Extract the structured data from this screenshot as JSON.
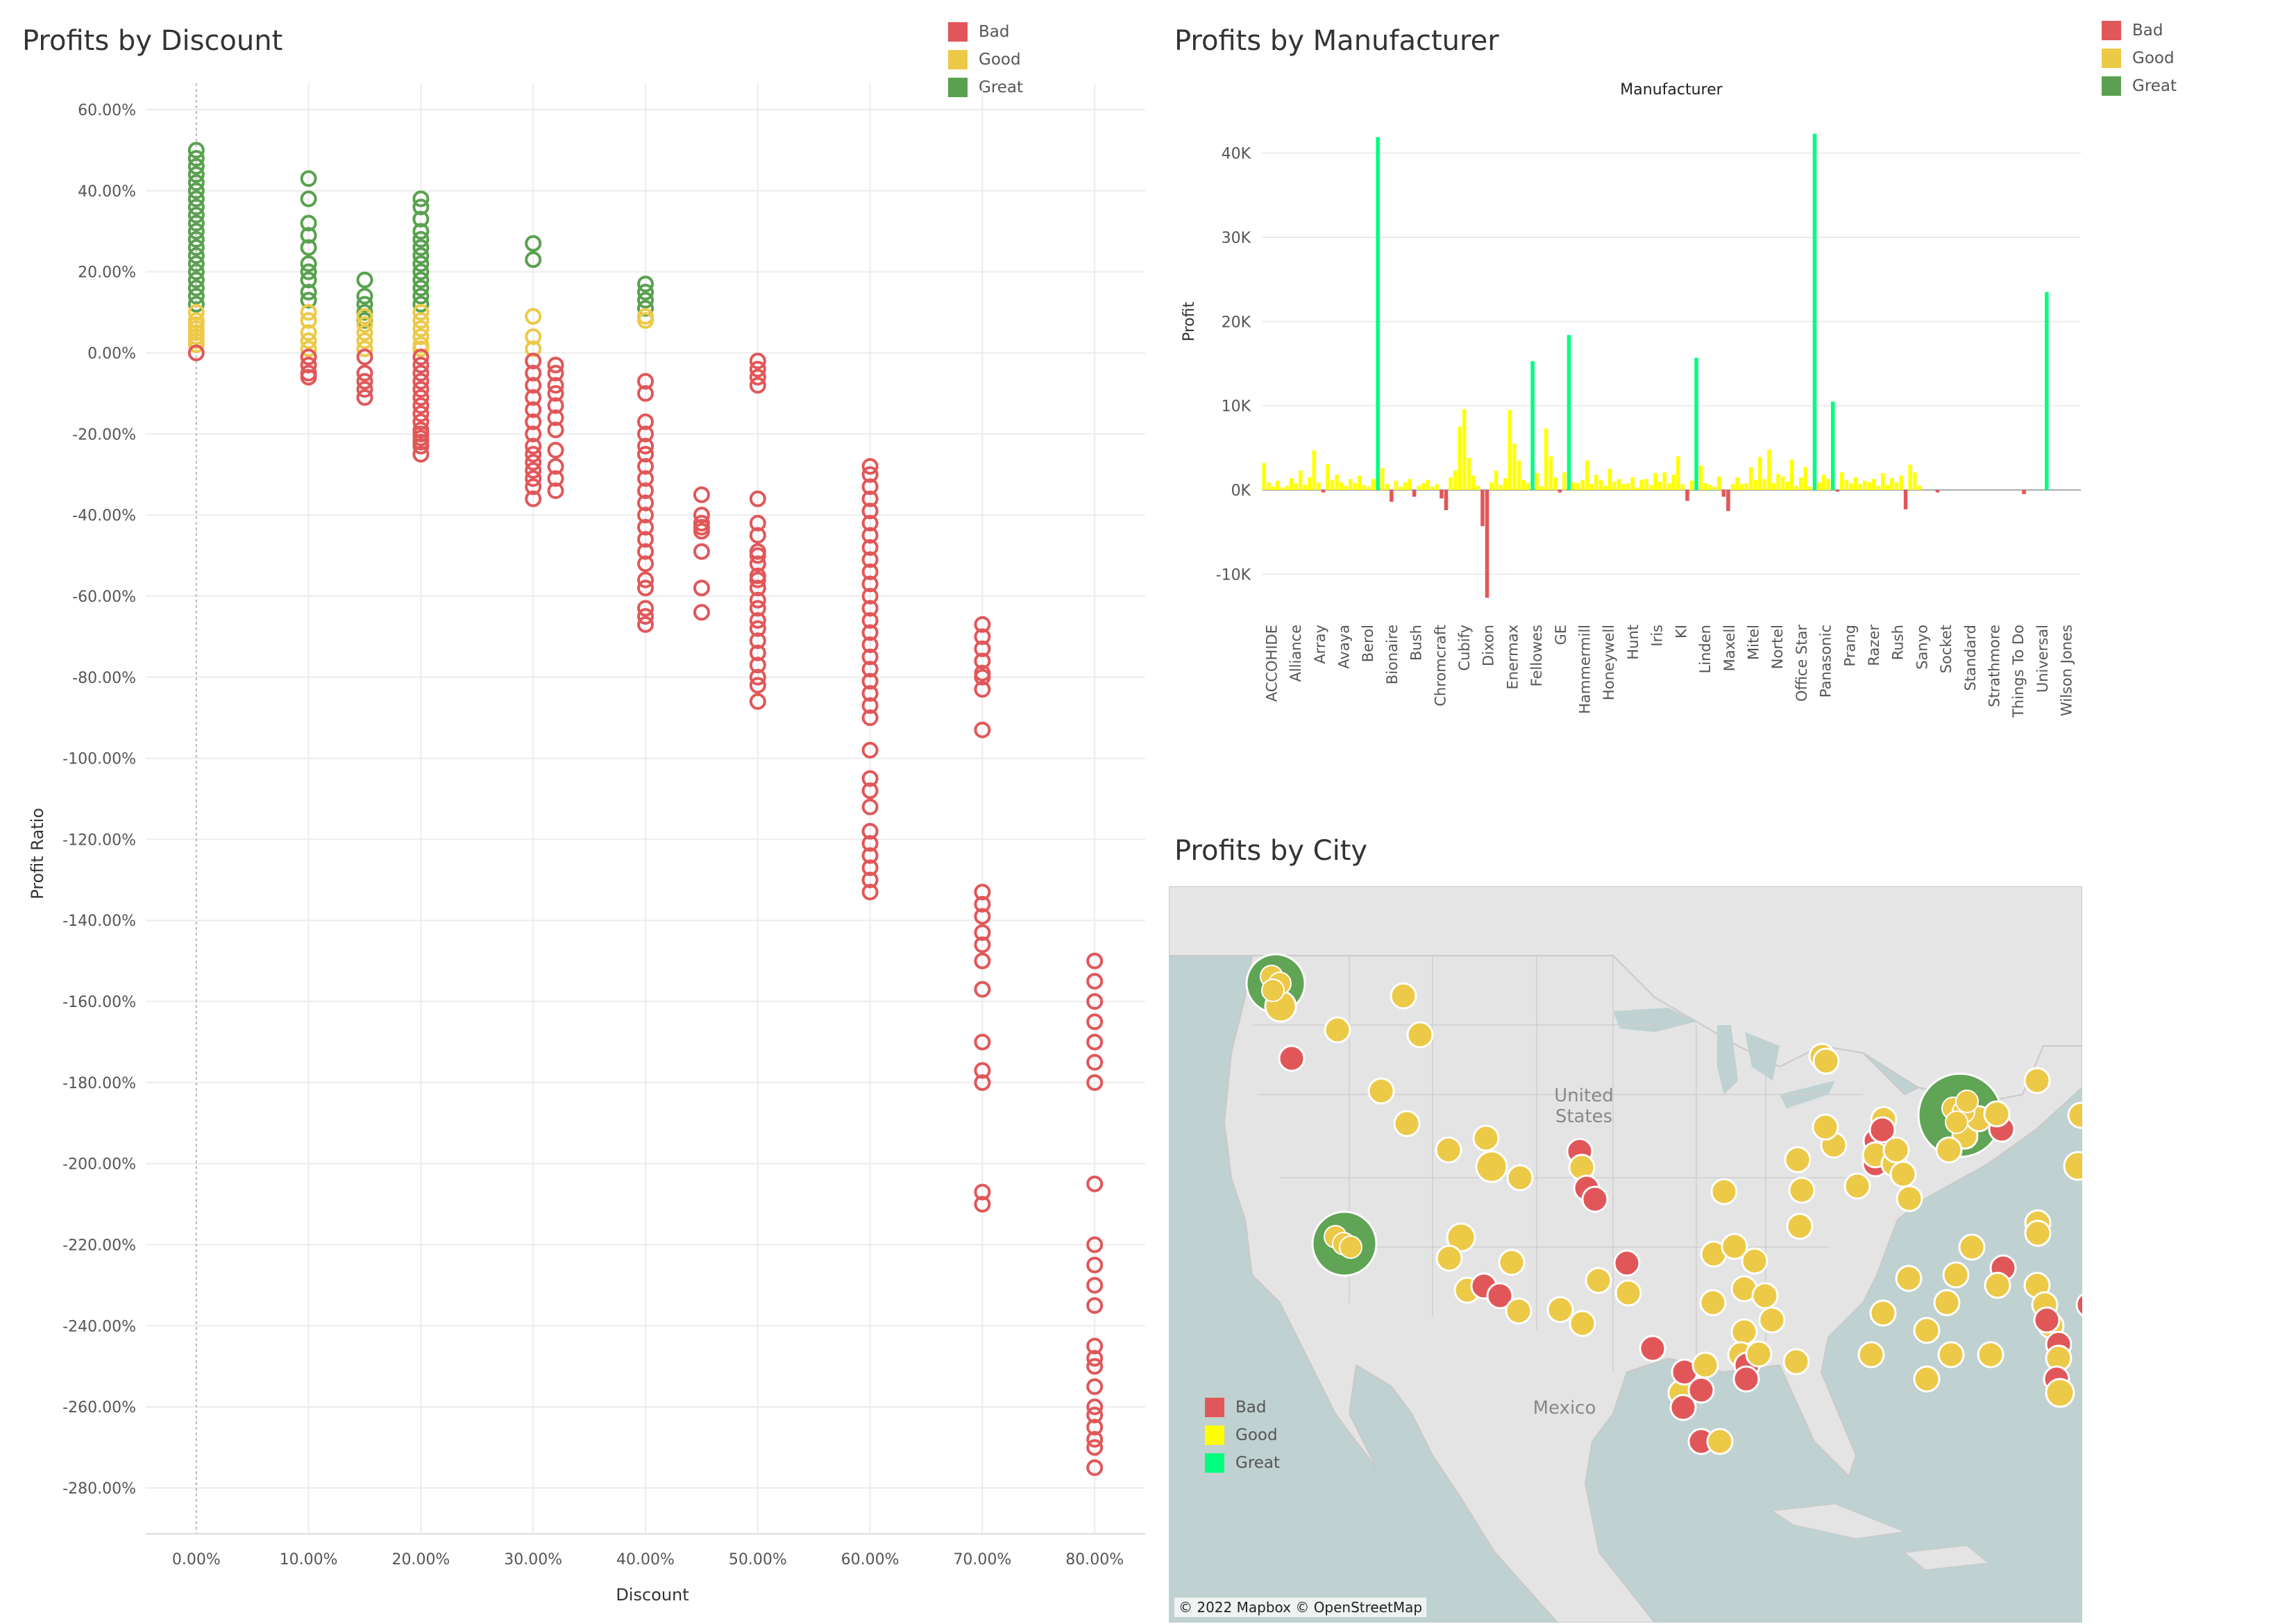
{
  "legend": [
    {
      "label": "Bad",
      "color": "#e15759"
    },
    {
      "label": "Good",
      "color": "#edc948"
    },
    {
      "label": "Great",
      "color": "#59a14f"
    }
  ],
  "map_legend": [
    {
      "label": "Bad",
      "color": "#e15759"
    },
    {
      "label": "Good",
      "color": "#ffff00"
    },
    {
      "label": "Great",
      "color": "#00ff7f"
    }
  ],
  "chart_data": [
    {
      "type": "scatter",
      "title": "Profits by Discount",
      "xlabel": "Discount",
      "ylabel": "Profit Ratio",
      "x_ticks": [
        "0.00%",
        "10.00%",
        "20.00%",
        "30.00%",
        "40.00%",
        "50.00%",
        "60.00%",
        "70.00%",
        "80.00%"
      ],
      "y_ticks": [
        "60.00%",
        "40.00%",
        "20.00%",
        "0.00%",
        "-20.00%",
        "-40.00%",
        "-60.00%",
        "-80.00%",
        "-100.00%",
        "-120.00%",
        "-140.00%",
        "-160.00%",
        "-180.00%",
        "-200.00%",
        "-220.00%",
        "-240.00%",
        "-260.00%",
        "-280.00%"
      ],
      "xlim": [
        0,
        0.8
      ],
      "ylim": [
        -2.9,
        0.6
      ],
      "grid": true,
      "legend_position": "top-right",
      "series": [
        {
          "name": "Great",
          "color": "#59a14f",
          "x": [
            0,
            0,
            0,
            0,
            0,
            0,
            0,
            0,
            0,
            0,
            0,
            0,
            0,
            0,
            0,
            0,
            0,
            0,
            0,
            0,
            0.1,
            0.1,
            0.1,
            0.1,
            0.1,
            0.1,
            0.1,
            0.1,
            0.1,
            0.1,
            0.15,
            0.15,
            0.15,
            0.15,
            0.15,
            0.2,
            0.2,
            0.2,
            0.2,
            0.2,
            0.2,
            0.2,
            0.2,
            0.2,
            0.2,
            0.2,
            0.2,
            0.2,
            0.3,
            0.3,
            0.4,
            0.4,
            0.4,
            0.4
          ],
          "y": [
            0.5,
            0.48,
            0.46,
            0.44,
            0.42,
            0.4,
            0.38,
            0.36,
            0.34,
            0.32,
            0.3,
            0.28,
            0.26,
            0.24,
            0.22,
            0.2,
            0.18,
            0.16,
            0.14,
            0.12,
            0.43,
            0.38,
            0.32,
            0.29,
            0.26,
            0.22,
            0.2,
            0.18,
            0.15,
            0.13,
            0.18,
            0.14,
            0.12,
            0.1,
            0.08,
            0.38,
            0.36,
            0.33,
            0.3,
            0.28,
            0.26,
            0.24,
            0.22,
            0.2,
            0.18,
            0.16,
            0.14,
            0.12,
            0.27,
            0.23,
            0.17,
            0.15,
            0.13,
            0.11
          ]
        },
        {
          "name": "Good",
          "color": "#edc948",
          "x": [
            0,
            0,
            0,
            0,
            0,
            0,
            0,
            0,
            0.1,
            0.1,
            0.1,
            0.1,
            0.1,
            0.15,
            0.15,
            0.15,
            0.15,
            0.15,
            0.2,
            0.2,
            0.2,
            0.2,
            0.2,
            0.2,
            0.3,
            0.3,
            0.3,
            0.4,
            0.4
          ],
          "y": [
            0.1,
            0.08,
            0.07,
            0.06,
            0.05,
            0.04,
            0.03,
            0.02,
            0.1,
            0.08,
            0.05,
            0.03,
            0.01,
            0.09,
            0.07,
            0.05,
            0.03,
            0.01,
            0.1,
            0.08,
            0.06,
            0.04,
            0.02,
            0.01,
            0.09,
            0.04,
            0.01,
            0.09,
            0.08
          ]
        },
        {
          "name": "Bad",
          "color": "#e15759",
          "x": [
            0,
            0.1,
            0.1,
            0.1,
            0.1,
            0.15,
            0.15,
            0.15,
            0.15,
            0.15,
            0.2,
            0.2,
            0.2,
            0.2,
            0.2,
            0.2,
            0.2,
            0.2,
            0.2,
            0.2,
            0.2,
            0.2,
            0.2,
            0.2,
            0.2,
            0.3,
            0.3,
            0.3,
            0.3,
            0.3,
            0.3,
            0.3,
            0.3,
            0.3,
            0.3,
            0.3,
            0.3,
            0.3,
            0.3,
            0.32,
            0.32,
            0.32,
            0.32,
            0.32,
            0.32,
            0.32,
            0.32,
            0.32,
            0.32,
            0.32,
            0.4,
            0.4,
            0.4,
            0.4,
            0.4,
            0.4,
            0.4,
            0.4,
            0.4,
            0.4,
            0.4,
            0.4,
            0.4,
            0.4,
            0.4,
            0.4,
            0.4,
            0.4,
            0.4,
            0.4,
            0.45,
            0.45,
            0.45,
            0.45,
            0.45,
            0.45,
            0.45,
            0.45,
            0.5,
            0.5,
            0.5,
            0.5,
            0.5,
            0.5,
            0.5,
            0.5,
            0.5,
            0.5,
            0.5,
            0.5,
            0.5,
            0.5,
            0.5,
            0.5,
            0.5,
            0.5,
            0.5,
            0.5,
            0.5,
            0.5,
            0.5,
            0.6,
            0.6,
            0.6,
            0.6,
            0.6,
            0.6,
            0.6,
            0.6,
            0.6,
            0.6,
            0.6,
            0.6,
            0.6,
            0.6,
            0.6,
            0.6,
            0.6,
            0.6,
            0.6,
            0.6,
            0.6,
            0.6,
            0.6,
            0.6,
            0.6,
            0.6,
            0.6,
            0.6,
            0.6,
            0.6,
            0.6,
            0.6,
            0.7,
            0.7,
            0.7,
            0.7,
            0.7,
            0.7,
            0.7,
            0.7,
            0.7,
            0.7,
            0.7,
            0.7,
            0.7,
            0.7,
            0.7,
            0.7,
            0.7,
            0.7,
            0.7,
            0.7,
            0.8,
            0.8,
            0.8,
            0.8,
            0.8,
            0.8,
            0.8,
            0.8,
            0.8,
            0.8,
            0.8,
            0.8,
            0.8,
            0.8,
            0.8,
            0.8,
            0.8,
            0.8,
            0.8,
            0.8,
            0.8,
            0.8
          ],
          "y": [
            0,
            -0.01,
            -0.03,
            -0.05,
            -0.06,
            -0.01,
            -0.05,
            -0.07,
            -0.09,
            -0.11,
            -0.01,
            -0.03,
            -0.05,
            -0.07,
            -0.09,
            -0.11,
            -0.13,
            -0.15,
            -0.17,
            -0.19,
            -0.2,
            -0.21,
            -0.22,
            -0.23,
            -0.25,
            -0.02,
            -0.05,
            -0.08,
            -0.11,
            -0.14,
            -0.17,
            -0.2,
            -0.23,
            -0.25,
            -0.27,
            -0.29,
            -0.31,
            -0.33,
            -0.36,
            -0.03,
            -0.05,
            -0.08,
            -0.1,
            -0.13,
            -0.16,
            -0.19,
            -0.24,
            -0.28,
            -0.31,
            -0.34,
            -0.07,
            -0.1,
            -0.17,
            -0.2,
            -0.23,
            -0.25,
            -0.28,
            -0.31,
            -0.34,
            -0.37,
            -0.4,
            -0.43,
            -0.46,
            -0.49,
            -0.52,
            -0.56,
            -0.58,
            -0.63,
            -0.65,
            -0.67,
            -0.35,
            -0.4,
            -0.42,
            -0.44,
            -0.49,
            -0.58,
            -0.64,
            -0.43,
            -0.02,
            -0.04,
            -0.06,
            -0.08,
            -0.36,
            -0.42,
            -0.45,
            -0.49,
            -0.52,
            -0.55,
            -0.58,
            -0.61,
            -0.63,
            -0.66,
            -0.68,
            -0.71,
            -0.74,
            -0.77,
            -0.8,
            -0.82,
            -0.86,
            -0.5,
            -0.56,
            -0.28,
            -0.3,
            -0.33,
            -0.36,
            -0.39,
            -0.42,
            -0.45,
            -0.48,
            -0.51,
            -0.54,
            -0.57,
            -0.6,
            -0.63,
            -0.66,
            -0.69,
            -0.72,
            -0.75,
            -0.78,
            -0.81,
            -0.84,
            -0.87,
            -0.9,
            -0.98,
            -1.05,
            -1.08,
            -1.12,
            -1.18,
            -1.21,
            -1.24,
            -1.27,
            -1.3,
            -1.33,
            -0.67,
            -0.7,
            -0.73,
            -0.76,
            -0.79,
            -0.83,
            -0.93,
            -1.33,
            -1.36,
            -1.39,
            -1.43,
            -1.46,
            -1.5,
            -1.57,
            -1.7,
            -1.77,
            -1.8,
            -2.07,
            -2.1,
            -0.8,
            -1.5,
            -1.55,
            -1.6,
            -1.65,
            -1.7,
            -1.75,
            -1.8,
            -2.05,
            -2.2,
            -2.25,
            -2.3,
            -2.35,
            -2.45,
            -2.5,
            -2.55,
            -2.6,
            -2.65,
            -2.7,
            -2.75,
            -2.48,
            -2.62,
            -2.68
          ]
        }
      ]
    },
    {
      "type": "bar",
      "title": "Profits by Manufacturer",
      "header": "Manufacturer",
      "xlabel": "",
      "ylabel": "Profit",
      "ylim": [
        -15000,
        45000
      ],
      "y_ticks": [
        "40K",
        "30K",
        "20K",
        "10K",
        "0K",
        "-10K"
      ],
      "y_tick_values": [
        40000,
        30000,
        20000,
        10000,
        0,
        -10000
      ],
      "x_labels": [
        "ACCOHIDE",
        "Alliance",
        "Array",
        "Avaya",
        "Berol",
        "Bionaire",
        "Bush",
        "Chromcraft",
        "Cubify",
        "Dixon",
        "Enermax",
        "Fellowes",
        "GE",
        "Hammermill",
        "Honeywell",
        "Hunt",
        "Iris",
        "KI",
        "Linden",
        "Maxell",
        "Mitel",
        "Nortel",
        "Office Star",
        "Panasonic",
        "Prang",
        "Razer",
        "Rush",
        "Sanyo",
        "Socket",
        "Standard",
        "Strathmore",
        "Things To Do",
        "Universal",
        "Wilson Jones"
      ],
      "categories_count": 180,
      "series": [
        {
          "name": "Great",
          "color": "#00ff7f",
          "indices": [
            25,
            59,
            67,
            95,
            121,
            125,
            172
          ],
          "values": [
            41900,
            15300,
            18400,
            15700,
            42300,
            10500,
            23500
          ]
        },
        {
          "name": "Bad",
          "color": "#e15759",
          "indices": [
            13,
            28,
            33,
            39,
            40,
            48,
            49,
            65,
            93,
            101,
            102,
            141,
            167,
            126,
            148
          ],
          "values": [
            -300,
            -1400,
            -800,
            -1000,
            -2400,
            -4300,
            -12800,
            -300,
            -1300,
            -800,
            -2500,
            -2300,
            -500,
            -200,
            -300
          ]
        },
        {
          "name": "Good",
          "color": "#ffff00",
          "values": [
            3200,
            900,
            400,
            1100,
            300,
            500,
            1400,
            800,
            2300,
            600,
            1500,
            4700,
            900,
            3100,
            1200,
            1800,
            900,
            500,
            1300,
            800,
            1700,
            600,
            400,
            1300,
            2600,
            700,
            1100,
            400,
            900,
            1300,
            500,
            800,
            1200,
            400,
            700,
            1500,
            2300,
            7500,
            9600,
            3800,
            1700,
            500,
            900,
            2300,
            600,
            1400,
            9500,
            5500,
            3500,
            1200,
            800,
            2000,
            400,
            7300,
            4000,
            1500,
            2100,
            900,
            800,
            1200,
            3500,
            700,
            1800,
            1200,
            500,
            2500,
            1000,
            1300,
            700,
            800,
            1500,
            300,
            1200,
            1300,
            600,
            2000,
            1000,
            2100,
            800,
            1800,
            4000,
            700,
            1100,
            2900,
            800,
            600,
            400,
            1600,
            700,
            1500,
            700,
            800,
            2700,
            1200,
            3900,
            1300,
            4800,
            800,
            1900,
            1600,
            1000,
            3600,
            500,
            1500,
            2700,
            400,
            900,
            1800,
            1300,
            2100,
            1200,
            800,
            1500,
            700,
            1100,
            900,
            1300,
            500,
            2000,
            600,
            1400,
            900,
            1700,
            3000,
            2100,
            500
          ]
        }
      ]
    },
    {
      "type": "scatter",
      "title": "Profits by City",
      "map": true,
      "labels": [
        "United States",
        "Mexico"
      ],
      "credit": "© 2022 Mapbox © OpenStreetMap"
    }
  ],
  "panels": {
    "discount": {
      "title": "Profits by Discount"
    },
    "manufacturer": {
      "title": "Profits by Manufacturer",
      "header": "Manufacturer"
    },
    "city": {
      "title": "Profits by City",
      "us_label": "United States",
      "mexico_label": "Mexico",
      "credit": "© 2022 Mapbox © OpenStreetMap"
    }
  }
}
